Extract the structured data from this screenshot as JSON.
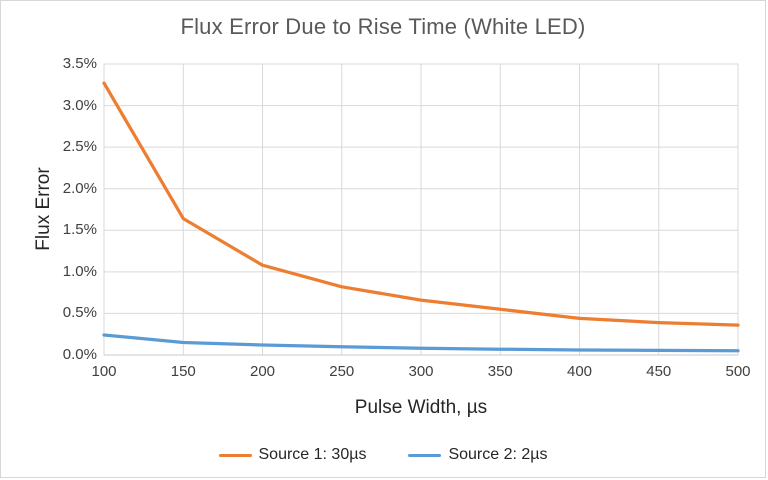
{
  "frame": {
    "background_color": "#FFFFFF",
    "border_color": "#D7D7D7"
  },
  "chart_data": {
    "type": "line",
    "title": "Flux Error Due to Rise Time (White LED)",
    "xlabel": "Pulse Width, µs",
    "ylabel": "Flux Error",
    "x": [
      100,
      150,
      200,
      250,
      300,
      350,
      400,
      450,
      500
    ],
    "series": [
      {
        "name": "Source 1: 30µs",
        "color": "#ED7D31",
        "values": [
          3.27,
          1.64,
          1.08,
          0.82,
          0.66,
          0.55,
          0.44,
          0.39,
          0.36
        ]
      },
      {
        "name": "Source 2: 2µs",
        "color": "#5B9BD5",
        "values": [
          0.24,
          0.15,
          0.12,
          0.1,
          0.08,
          0.07,
          0.06,
          0.055,
          0.05
        ]
      }
    ],
    "y_unit": "percent",
    "xlim": [
      100,
      500
    ],
    "ylim": [
      0,
      3.5
    ],
    "x_tick_labels": [
      "100",
      "150",
      "200",
      "250",
      "300",
      "350",
      "400",
      "450",
      "500"
    ],
    "y_tick_labels": [
      "0.0%",
      "0.5%",
      "1.0%",
      "1.5%",
      "2.0%",
      "2.5%",
      "3.0%",
      "3.5%"
    ],
    "grid": true,
    "gridline_color": "#D9D9D9",
    "axis_line_color": "#C9C9C9",
    "title_color": "#595959",
    "tick_label_color": "#404040",
    "axis_title_color": "#262626",
    "legend_position": "bottom"
  }
}
